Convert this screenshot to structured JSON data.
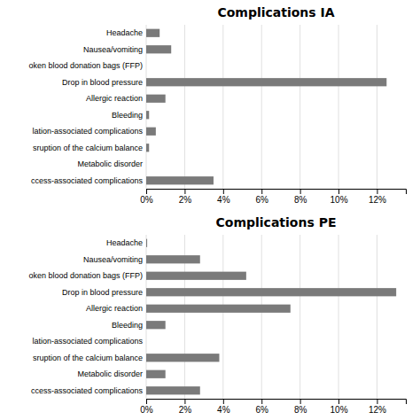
{
  "chart_data": [
    {
      "type": "bar",
      "title": "Complications IA",
      "orientation": "horizontal",
      "categories": [
        "Headache",
        "Nausea/vomiting",
        "oken blood donation bags  (FFP)",
        "Drop in blood pressure",
        "Allergic reaction",
        "Bleeding",
        "lation-associated complications",
        "sruption of the calcium balance",
        "Metabolic disorder",
        "ccess-associated complications"
      ],
      "values": [
        0.7,
        1.3,
        0.0,
        12.5,
        1.0,
        0.15,
        0.5,
        0.15,
        0.0,
        3.5
      ],
      "color": "#7a7a7a",
      "xlim": [
        0,
        13.5
      ],
      "xticks": [
        {
          "value": 0,
          "label": "0%"
        },
        {
          "value": 2,
          "label": "2%"
        },
        {
          "value": 4,
          "label": "4%"
        },
        {
          "value": 6,
          "label": "6%"
        },
        {
          "value": 8,
          "label": "8%"
        },
        {
          "value": 10,
          "label": "10%"
        },
        {
          "value": 12,
          "label": "12%"
        }
      ],
      "grid": true
    },
    {
      "type": "bar",
      "title": "Complications PE",
      "orientation": "horizontal",
      "categories": [
        "Headache",
        "Nausea/vomiting",
        "oken blood donation bags  (FFP)",
        "Drop in blood pressure",
        "Allergic reaction",
        "Bleeding",
        "lation-associated complications",
        "sruption of the calcium balance",
        "Metabolic disorder",
        "ccess-associated complications"
      ],
      "values": [
        0.05,
        2.8,
        5.2,
        13.0,
        7.5,
        1.0,
        0.0,
        3.8,
        1.0,
        2.8
      ],
      "color": "#7a7a7a",
      "xlim": [
        0,
        13.5
      ],
      "xticks": [
        {
          "value": 0,
          "label": "0%"
        },
        {
          "value": 2,
          "label": "2%"
        },
        {
          "value": 4,
          "label": "4%"
        },
        {
          "value": 6,
          "label": "6%"
        },
        {
          "value": 8,
          "label": "8%"
        },
        {
          "value": 10,
          "label": "10%"
        },
        {
          "value": 12,
          "label": "12%"
        }
      ],
      "grid": true
    }
  ]
}
